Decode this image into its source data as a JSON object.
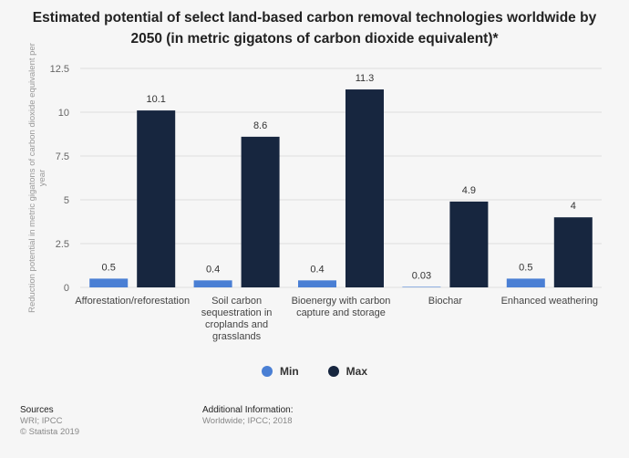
{
  "title": "Estimated potential of select land-based carbon removal technologies worldwide by 2050 (in metric gigatons of carbon dioxide equivalent)*",
  "colors": {
    "min": "#4a7fd4",
    "max": "#17263f",
    "grid": "#dddddd",
    "axis": "#666666"
  },
  "chart_data": {
    "type": "bar",
    "categories": [
      [
        "Afforestation/reforestation"
      ],
      [
        "Soil carbon",
        "sequestration in",
        "croplands and",
        "grasslands"
      ],
      [
        "Bioenergy with carbon",
        "capture and storage"
      ],
      [
        "Biochar"
      ],
      [
        "Enhanced weathering"
      ]
    ],
    "series": [
      {
        "name": "Min",
        "values": [
          0.5,
          0.4,
          0.4,
          0.03,
          0.5
        ],
        "labels": [
          "0.5",
          "0.4",
          "0.4",
          "0.03",
          "0.5"
        ]
      },
      {
        "name": "Max",
        "values": [
          10.1,
          8.6,
          11.3,
          4.9,
          4
        ],
        "labels": [
          "10.1",
          "8.6",
          "11.3",
          "4.9",
          "4"
        ]
      }
    ],
    "ylabel": [
      "Reduction potential in metric gigatons of carbon dioxide equivalent per",
      "year"
    ],
    "yticks": [
      "0",
      "2.5",
      "5",
      "7.5",
      "10",
      "12.5"
    ],
    "ylim": [
      0,
      12.5
    ],
    "grid": true,
    "legend": "bottom-center"
  },
  "footer": {
    "sources_title": "Sources",
    "sources_lines": [
      "WRI; IPCC",
      "© Statista 2019"
    ],
    "info_title": "Additional Information:",
    "info_text": "Worldwide; IPCC; 2018"
  }
}
